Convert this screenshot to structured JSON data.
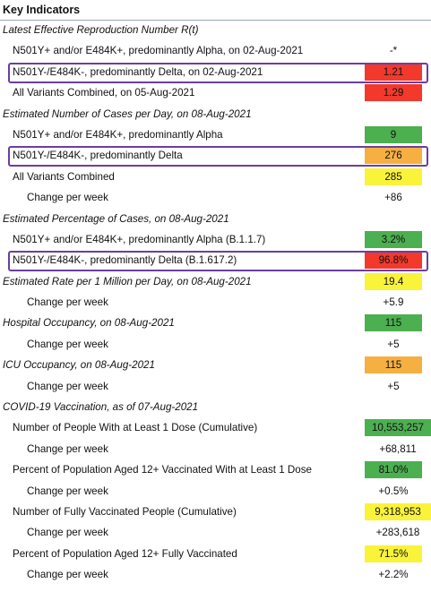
{
  "title": "Key Indicators",
  "colors": {
    "red": "#f2392c",
    "green": "#4caf50",
    "orange": "#f5b041",
    "yellow": "#f9f33a",
    "highlight": "#6b3fa0"
  },
  "rows": [
    {
      "kind": "section",
      "label": "Latest Effective Reproduction Number R(t)"
    },
    {
      "kind": "item",
      "label": "N501Y+ and/or E484K+, predominantly Alpha, on 02-Aug-2021",
      "value": "-*",
      "color": ""
    },
    {
      "kind": "item",
      "label": "N501Y-/E484K-, predominantly Delta, on 02-Aug-2021",
      "value": "1.21",
      "color": "#f2392c",
      "highlight": true
    },
    {
      "kind": "item",
      "label": "All Variants Combined, on 05-Aug-2021",
      "value": "1.29",
      "color": "#f2392c"
    },
    {
      "kind": "section",
      "label": "Estimated Number of Cases per Day, on 08-Aug-2021"
    },
    {
      "kind": "item",
      "label": "N501Y+ and/or E484K+, predominantly Alpha",
      "value": "9",
      "color": "#4caf50"
    },
    {
      "kind": "item",
      "label": "N501Y-/E484K-, predominantly Delta",
      "value": "276",
      "color": "#f5b041",
      "highlight": true
    },
    {
      "kind": "item",
      "label": "All Variants Combined",
      "value": "285",
      "color": "#f9f33a"
    },
    {
      "kind": "sub",
      "label": "Change per week",
      "value": "+86",
      "color": ""
    },
    {
      "kind": "section",
      "label": "Estimated Percentage of Cases, on 08-Aug-2021"
    },
    {
      "kind": "item",
      "label": "N501Y+ and/or E484K+, predominantly Alpha (B.1.1.7)",
      "value": "3.2%",
      "color": "#4caf50"
    },
    {
      "kind": "item",
      "label": "N501Y-/E484K-, predominantly Delta (B.1.617.2)",
      "value": "96.8%",
      "color": "#f2392c",
      "highlight": true
    },
    {
      "kind": "rate",
      "label": "Estimated Rate per 1 Million per Day, on 08-Aug-2021",
      "value": "19.4",
      "color": "#f9f33a"
    },
    {
      "kind": "sub",
      "label": "Change per week",
      "value": "+5.9",
      "color": ""
    },
    {
      "kind": "rate",
      "label": "Hospital Occupancy, on 08-Aug-2021",
      "value": "115",
      "color": "#4caf50"
    },
    {
      "kind": "sub",
      "label": "Change per week",
      "value": "+5",
      "color": ""
    },
    {
      "kind": "rate",
      "label": "ICU Occupancy, on 08-Aug-2021",
      "value": "115",
      "color": "#f5b041"
    },
    {
      "kind": "sub",
      "label": "Change per week",
      "value": "+5",
      "color": ""
    },
    {
      "kind": "section",
      "label": "COVID-19 Vaccination, as of 07-Aug-2021"
    },
    {
      "kind": "item",
      "label": "Number of People With at Least 1 Dose (Cumulative)",
      "value": "10,553,257",
      "color": "#4caf50",
      "wide": true
    },
    {
      "kind": "sub",
      "label": "Change per week",
      "value": "+68,811",
      "color": "",
      "wide": true
    },
    {
      "kind": "item",
      "label": "Percent of Population Aged 12+ Vaccinated With at Least 1 Dose",
      "value": "81.0%",
      "color": "#4caf50"
    },
    {
      "kind": "sub",
      "label": "Change per week",
      "value": "+0.5%",
      "color": ""
    },
    {
      "kind": "item",
      "label": "Number of Fully Vaccinated People (Cumulative)",
      "value": "9,318,953",
      "color": "#f9f33a",
      "wide": true
    },
    {
      "kind": "sub",
      "label": "Change per week",
      "value": "+283,618",
      "color": "",
      "wide": true
    },
    {
      "kind": "item",
      "label": "Percent of Population Aged 12+ Fully Vaccinated",
      "value": "71.5%",
      "color": "#f9f33a"
    },
    {
      "kind": "sub",
      "label": "Change per week",
      "value": "+2.2%",
      "color": ""
    }
  ]
}
